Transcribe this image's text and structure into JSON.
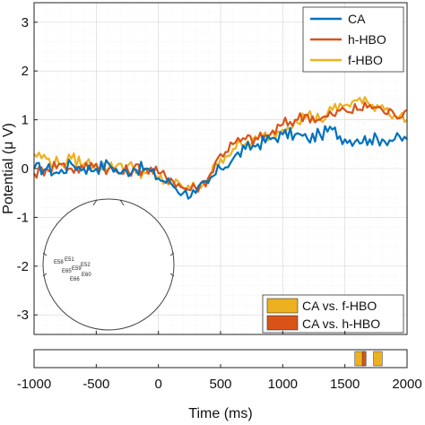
{
  "chart_data": {
    "type": "line",
    "xlabel": "Time (ms)",
    "ylabel": "Potential (μ V)",
    "xlim": [
      -1000,
      2000
    ],
    "ylim": [
      -3.4,
      3.4
    ],
    "x_ticks": [
      -1000,
      -500,
      0,
      500,
      1000,
      1500,
      2000
    ],
    "x_tick_labels": [
      "-1000",
      "-500",
      "0",
      "500",
      "1000",
      "1500",
      "2000"
    ],
    "y_ticks": [
      -3,
      -2,
      -1,
      0,
      1,
      2,
      3
    ],
    "y_tick_labels": [
      "-3",
      "-2",
      "-1",
      "0",
      "1",
      "2",
      "3"
    ],
    "grid": true,
    "legend_position": "top-right",
    "x": [
      -1000,
      -900,
      -800,
      -700,
      -600,
      -500,
      -400,
      -300,
      -200,
      -100,
      0,
      100,
      200,
      300,
      400,
      500,
      600,
      700,
      800,
      900,
      1000,
      1100,
      1200,
      1300,
      1400,
      1500,
      1600,
      1700,
      1800,
      1900,
      2000
    ],
    "series": [
      {
        "name": "CA",
        "color": "#0072BD",
        "values": [
          0.0,
          0.0,
          -0.1,
          0.1,
          0.0,
          0.0,
          0.1,
          -0.1,
          0.0,
          0.0,
          -0.2,
          -0.3,
          -0.5,
          -0.5,
          -0.3,
          0.0,
          0.2,
          0.4,
          0.5,
          0.6,
          0.7,
          0.7,
          0.6,
          0.7,
          0.8,
          0.6,
          0.6,
          0.6,
          0.6,
          0.6,
          0.6
        ]
      },
      {
        "name": "h-HBO",
        "color": "#D95319",
        "values": [
          -0.1,
          0.0,
          0.1,
          0.0,
          0.0,
          0.1,
          0.0,
          -0.1,
          0.0,
          0.0,
          -0.1,
          -0.2,
          -0.4,
          -0.4,
          -0.2,
          0.3,
          0.5,
          0.6,
          0.6,
          0.7,
          0.9,
          1.0,
          1.1,
          1.0,
          1.1,
          1.2,
          1.2,
          1.3,
          1.2,
          1.1,
          1.2
        ]
      },
      {
        "name": "f-HBO",
        "color": "#EDB120",
        "values": [
          0.3,
          0.2,
          0.1,
          0.2,
          0.1,
          0.1,
          0.0,
          0.1,
          0.0,
          -0.1,
          -0.2,
          -0.3,
          -0.4,
          -0.4,
          -0.2,
          0.2,
          0.4,
          0.5,
          0.6,
          0.7,
          0.8,
          1.0,
          1.1,
          1.0,
          1.2,
          1.3,
          1.4,
          1.3,
          1.3,
          1.1,
          1.0
        ]
      }
    ],
    "significance_legend": [
      {
        "name": "CA vs. f-HBO",
        "color": "#EDB120"
      },
      {
        "name": "CA vs. h-HBO",
        "color": "#D95319"
      }
    ],
    "significance_intervals": [
      {
        "comparison": "CA vs. f-HBO",
        "color": "#EDB120",
        "x_start": 1580,
        "x_end": 1660
      },
      {
        "comparison": "CA vs. h-HBO",
        "color": "#D95319",
        "x_start": 1640,
        "x_end": 1670
      },
      {
        "comparison": "CA vs. f-HBO",
        "color": "#EDB120",
        "x_start": 1730,
        "x_end": 1800
      }
    ],
    "inset_electrodes": [
      "E58",
      "E51",
      "E52",
      "E65",
      "E59",
      "E60",
      "E66"
    ]
  }
}
